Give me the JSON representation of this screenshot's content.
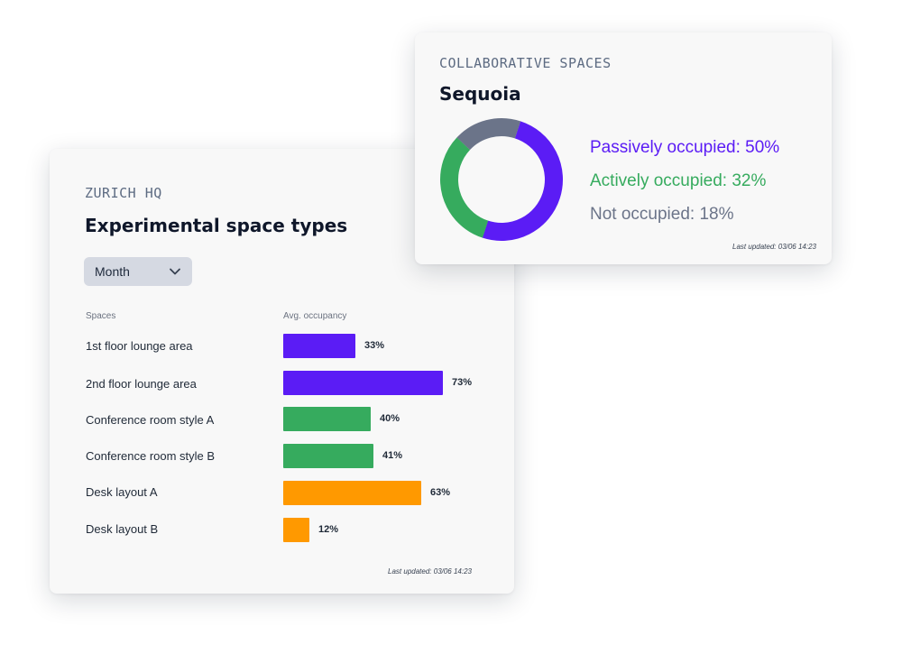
{
  "left_card": {
    "eyebrow": "ZURICH HQ",
    "title": "Experimental space types",
    "dropdown": {
      "selected": "Month",
      "icon": "chevron-down-icon"
    },
    "columns": {
      "spaces": "Spaces",
      "occupancy": "Avg. occupancy"
    },
    "rows": [
      {
        "label": "1st floor lounge area",
        "value_pct": 33,
        "value_label": "33%",
        "color": "#5b1cf5"
      },
      {
        "label": "2nd floor lounge area",
        "value_pct": 73,
        "value_label": "73%",
        "color": "#5b1cf5"
      },
      {
        "label": "Conference room style A",
        "value_pct": 40,
        "value_label": "40%",
        "color": "#36ab5e"
      },
      {
        "label": "Conference room style B",
        "value_pct": 41,
        "value_label": "41%",
        "color": "#36ab5e"
      },
      {
        "label": "Desk layout A",
        "value_pct": 63,
        "value_label": "63%",
        "color": "#ff9900"
      },
      {
        "label": "Desk layout B",
        "value_pct": 12,
        "value_label": "12%",
        "color": "#ff9900"
      }
    ],
    "last_updated": "Last updated: 03/06 14:23"
  },
  "right_card": {
    "eyebrow": "COLLABORATIVE SPACES",
    "title": "Sequoia",
    "legend": [
      {
        "text": "Passively occupied: 50%",
        "value_pct": 50,
        "color": "#5b1cf5"
      },
      {
        "text": "Actively occupied: 32%",
        "value_pct": 32,
        "color": "#36ab5e"
      },
      {
        "text": "Not occupied: 18%",
        "value_pct": 18,
        "color": "#6b7489"
      }
    ],
    "last_updated": "Last updated: 03/06 14:23"
  }
}
